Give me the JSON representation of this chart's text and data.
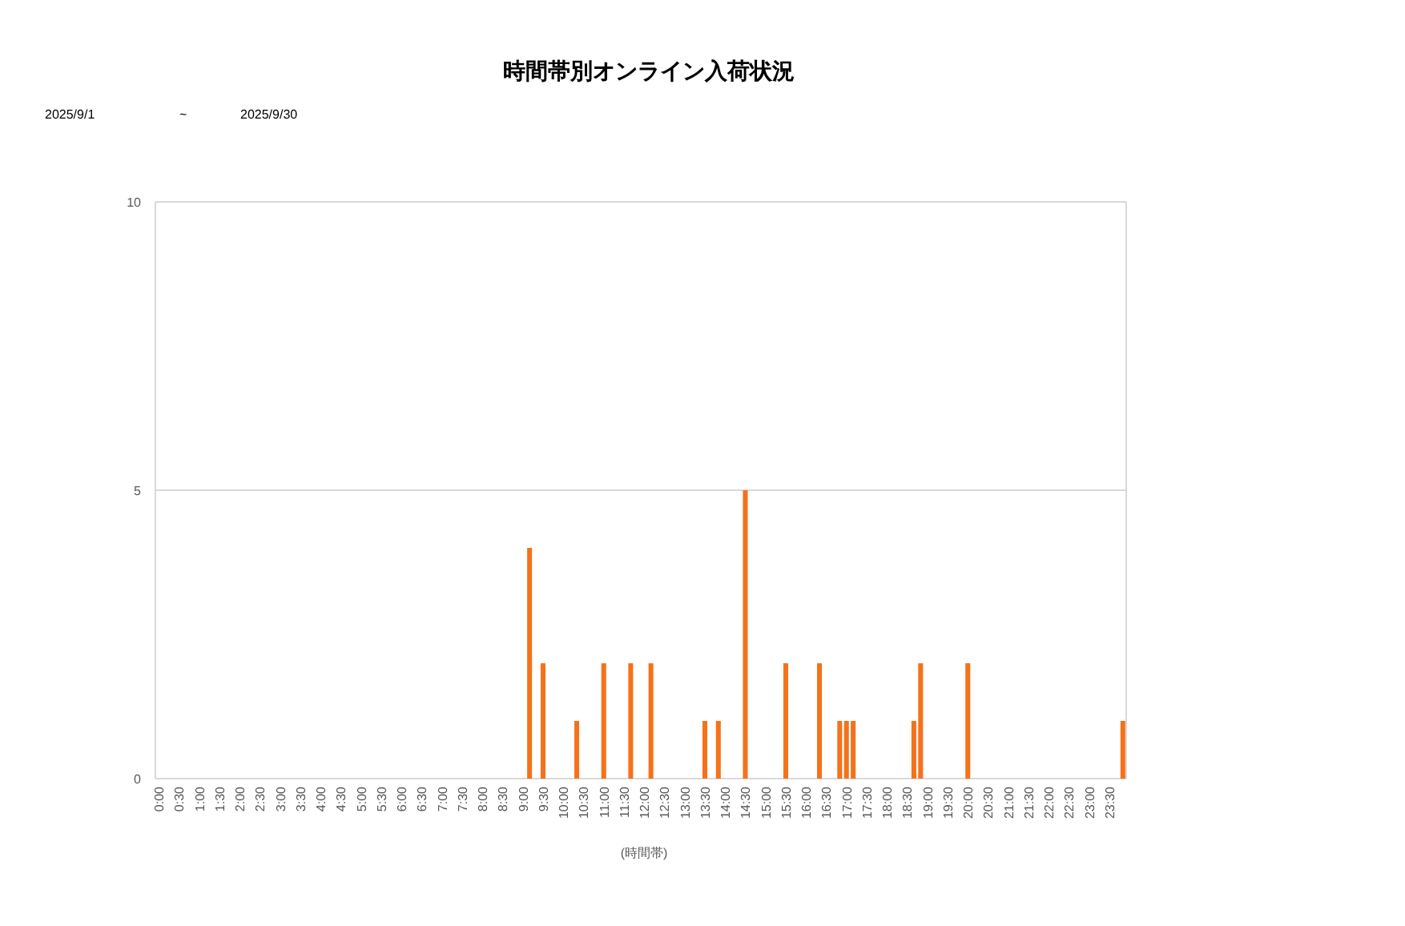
{
  "chart_data": {
    "type": "bar",
    "title": "時間帯別オンライン入荷状況",
    "annotations": [
      "2025/9/1",
      "~",
      "2025/9/30"
    ],
    "xlabel": "(時間帯)",
    "categories": [
      "0:00",
      null,
      null,
      "0:30",
      null,
      null,
      "1:00",
      null,
      null,
      "1:30",
      null,
      null,
      "2:00",
      null,
      null,
      "2:30",
      null,
      null,
      "3:00",
      null,
      null,
      "3:30",
      null,
      null,
      "4:00",
      null,
      null,
      "4:30",
      null,
      null,
      "5:00",
      null,
      null,
      "5:30",
      null,
      null,
      "6:00",
      null,
      null,
      "6:30",
      null,
      null,
      "7:00",
      null,
      null,
      "7:30",
      null,
      null,
      "8:00",
      null,
      null,
      "8:30",
      null,
      null,
      "9:00",
      null,
      null,
      "9:30",
      null,
      null,
      "10:00",
      null,
      null,
      "10:30",
      null,
      null,
      "11:00",
      null,
      null,
      "11:30",
      null,
      null,
      "12:00",
      null,
      null,
      "12:30",
      null,
      null,
      "13:00",
      null,
      null,
      "13:30",
      null,
      null,
      "14:00",
      null,
      null,
      "14:30",
      null,
      null,
      "15:00",
      null,
      null,
      "15:30",
      null,
      null,
      "16:00",
      null,
      null,
      "16:30",
      null,
      null,
      "17:00",
      null,
      null,
      "17:30",
      null,
      null,
      "18:00",
      null,
      null,
      "18:30",
      null,
      null,
      "19:00",
      null,
      null,
      "19:30",
      null,
      null,
      "20:00",
      null,
      null,
      "20:30",
      null,
      null,
      "21:00",
      null,
      null,
      "21:30",
      null,
      null,
      "22:00",
      null,
      null,
      "22:30",
      null,
      null,
      "23:00",
      null,
      null,
      "23:30",
      null,
      null
    ],
    "values": [
      0,
      0,
      0,
      0,
      0,
      0,
      0,
      0,
      0,
      0,
      0,
      0,
      0,
      0,
      0,
      0,
      0,
      0,
      0,
      0,
      0,
      0,
      0,
      0,
      0,
      0,
      0,
      0,
      0,
      0,
      0,
      0,
      0,
      0,
      0,
      0,
      0,
      0,
      0,
      0,
      0,
      0,
      0,
      0,
      0,
      0,
      0,
      0,
      0,
      0,
      0,
      0,
      0,
      0,
      0,
      4,
      0,
      2,
      0,
      0,
      0,
      0,
      1,
      0,
      0,
      0,
      2,
      0,
      0,
      0,
      2,
      0,
      0,
      2,
      0,
      0,
      0,
      0,
      0,
      0,
      0,
      1,
      0,
      1,
      0,
      0,
      0,
      5,
      0,
      0,
      0,
      0,
      0,
      2,
      0,
      0,
      0,
      0,
      2,
      0,
      0,
      1,
      1,
      1,
      0,
      0,
      0,
      0,
      0,
      0,
      0,
      0,
      1,
      2,
      0,
      0,
      0,
      0,
      0,
      0,
      2,
      0,
      0,
      0,
      0,
      0,
      0,
      0,
      0,
      0,
      0,
      0,
      0,
      0,
      0,
      0,
      0,
      0,
      0,
      0,
      0,
      0,
      0,
      1
    ],
    "color": "#f5721b",
    "ylim": [
      0,
      10
    ],
    "yticks": [
      0,
      5,
      10
    ],
    "grid": "y"
  }
}
